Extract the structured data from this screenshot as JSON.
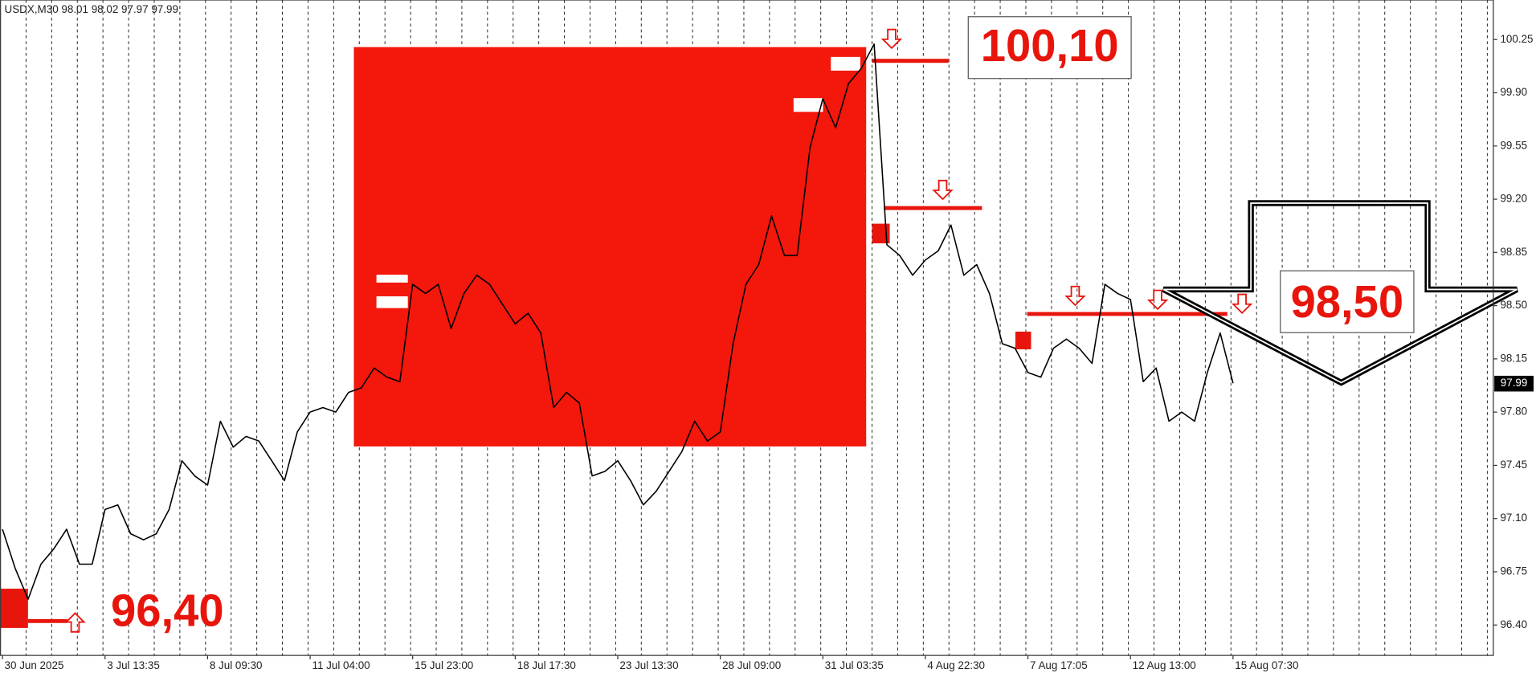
{
  "chart_data": {
    "type": "line",
    "header": "USDX,M30 98.01 98.02 97.97 97.99",
    "last_price_label": "97.99",
    "annotations": [
      "100,10",
      "98,50",
      "96,40"
    ],
    "color": "#000000",
    "categories": [
      "30 Jun 2025",
      null,
      null,
      null,
      null,
      null,
      null,
      null,
      "3 Jul 13:35",
      null,
      null,
      null,
      null,
      null,
      null,
      null,
      "8 Jul 09:30",
      null,
      null,
      null,
      null,
      null,
      null,
      null,
      "11 Jul 04:00",
      null,
      null,
      null,
      null,
      null,
      null,
      null,
      "15 Jul 23:00",
      null,
      null,
      null,
      null,
      null,
      null,
      null,
      "18 Jul 17:30",
      null,
      null,
      null,
      null,
      null,
      null,
      null,
      "23 Jul 13:30",
      null,
      null,
      null,
      null,
      null,
      null,
      null,
      "28 Jul 09:00",
      null,
      null,
      null,
      null,
      null,
      null,
      null,
      "31 Jul 03:35",
      null,
      null,
      null,
      null,
      null,
      null,
      null,
      "4 Aug 22:30",
      null,
      null,
      null,
      null,
      null,
      null,
      null,
      "7 Aug 17:05",
      null,
      null,
      null,
      null,
      null,
      null,
      null,
      "12 Aug 13:00",
      null,
      null,
      null,
      null,
      null,
      null,
      null,
      "15 Aug 07:30"
    ],
    "values": [
      97.03,
      96.77,
      96.57,
      96.8,
      96.9,
      97.03,
      96.8,
      96.8,
      97.16,
      97.19,
      97.0,
      96.96,
      97.0,
      97.16,
      97.48,
      97.38,
      97.32,
      97.74,
      97.57,
      97.64,
      97.61,
      97.48,
      97.35,
      97.67,
      97.8,
      97.83,
      97.8,
      97.93,
      97.96,
      98.09,
      98.03,
      98.0,
      98.64,
      98.58,
      98.64,
      98.35,
      98.58,
      98.7,
      98.64,
      98.51,
      98.38,
      98.45,
      98.32,
      97.83,
      97.93,
      97.86,
      97.38,
      97.41,
      97.48,
      97.35,
      97.19,
      97.28,
      97.41,
      97.54,
      97.74,
      97.61,
      97.67,
      98.25,
      98.64,
      98.77,
      99.09,
      98.83,
      98.83,
      99.54,
      99.86,
      99.67,
      99.96,
      100.06,
      100.22,
      98.9,
      98.83,
      98.7,
      98.8,
      98.86,
      99.03,
      98.7,
      98.77,
      98.58,
      98.25,
      98.22,
      98.06,
      98.03,
      98.22,
      98.28,
      98.22,
      98.12,
      98.64,
      98.58,
      98.54,
      98.0,
      98.09,
      97.74,
      97.8,
      97.74,
      98.06,
      98.32,
      97.99
    ],
    "ylim": [
      96.2,
      100.51
    ],
    "yticks": [
      100.25,
      {
        "value": 99.9,
        "label": "99.90"
      },
      99.55,
      {
        "value": 99.2,
        "label": "99.20"
      },
      98.85,
      {
        "value": 98.5,
        "label": "98.50"
      },
      98.15,
      {
        "value": 97.8,
        "label": "97.80"
      },
      97.45,
      {
        "value": 97.1,
        "label": "97.10"
      },
      96.75,
      {
        "value": 96.4,
        "label": "96.40"
      }
    ],
    "grid": true
  }
}
